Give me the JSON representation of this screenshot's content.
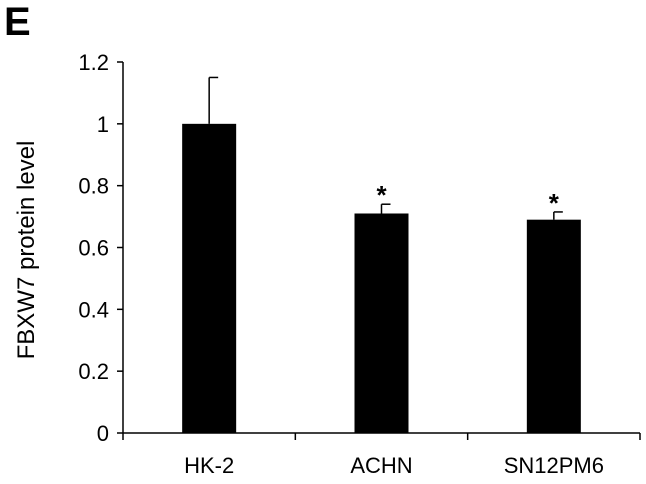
{
  "panel_label": "E",
  "chart_data": {
    "type": "bar",
    "title": "",
    "xlabel": "",
    "ylabel": "FBXW7 protein level",
    "categories": [
      "HK-2",
      "ACHN",
      "SN12PM6"
    ],
    "values": [
      1.0,
      0.71,
      0.69
    ],
    "error_upper": [
      0.15,
      0.03,
      0.025
    ],
    "annotations": [
      "",
      "*",
      "*"
    ],
    "ylim": [
      0,
      1.2
    ],
    "yticks": [
      0,
      0.2,
      0.4,
      0.6,
      0.8,
      1,
      1.2
    ],
    "ytick_labels": [
      "0",
      "0.2",
      "0.4",
      "0.6",
      "0.8",
      "1",
      "1.2"
    ],
    "grid": false,
    "bar_color": "#000000",
    "axis_color": "#000000"
  }
}
